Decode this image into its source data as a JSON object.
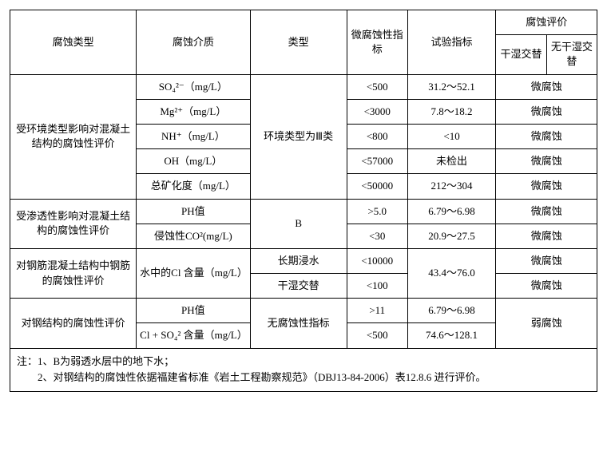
{
  "header": {
    "col1": "腐蚀类型",
    "col2": "腐蚀介质",
    "col3": "类型",
    "col4": "微腐蚀性指标",
    "col5": "试验指标",
    "eval_group": "腐蚀评价",
    "eval_a": "干湿交替",
    "eval_b": "无干湿交替"
  },
  "sections": [
    {
      "type_label": "受环境类型影响对混凝土结构的腐蚀性评价",
      "category": "环境类型为Ⅲ类",
      "rows": [
        {
          "medium": "SO₄²⁻（mg/L）",
          "micro": "<500",
          "test": "31.2～52.1",
          "eval": "微腐蚀"
        },
        {
          "medium": "Mg²⁺（mg/L）",
          "micro": "<3000",
          "test": "7.8～18.2",
          "eval": "微腐蚀"
        },
        {
          "medium": "NH⁺（mg/L）",
          "micro": "<800",
          "test": "<10",
          "eval": "微腐蚀"
        },
        {
          "medium": "OH（mg/L）",
          "micro": "<57000",
          "test": "未检出",
          "eval": "微腐蚀"
        },
        {
          "medium": "总矿化度（mg/L）",
          "micro": "<50000",
          "test": "212～304",
          "eval": "微腐蚀"
        }
      ]
    },
    {
      "type_label": "受渗透性影响对混凝土结构的腐蚀性评价",
      "category": "B",
      "rows": [
        {
          "medium": "PH值",
          "micro": ">5.0",
          "test": "6.79～6.98",
          "eval": "微腐蚀"
        },
        {
          "medium": "侵蚀性CO²(mg/L)",
          "micro": "<30",
          "test": "20.9～27.5",
          "eval": "微腐蚀"
        }
      ]
    },
    {
      "type_label": "对钢筋混凝土结构中钢筋的腐蚀性评价",
      "medium": "水中的Cl 含量（mg/L）",
      "rows": [
        {
          "category": "长期浸水",
          "micro": "<10000",
          "eval": "微腐蚀"
        },
        {
          "category": "干湿交替",
          "micro": "<100",
          "eval": "微腐蚀"
        }
      ],
      "test": "43.4～76.0"
    },
    {
      "type_label": "对钢结构的腐蚀性评价",
      "category": "无腐蚀性指标",
      "eval": "弱腐蚀",
      "rows": [
        {
          "medium": "PH值",
          "micro": ">11",
          "test": "6.79～6.98"
        },
        {
          "medium": "Cl + SO₄² 含量（mg/L）",
          "micro": "<500",
          "test": "74.6～128.1"
        }
      ]
    }
  ],
  "notes": {
    "line1": "注：1、B为弱透水层中的地下水；",
    "line2": "　　2、对钢结构的腐蚀性依据福建省标准《岩土工程勘察规范》（DBJ13-84-2006）表12.8.6 进行评价。"
  }
}
